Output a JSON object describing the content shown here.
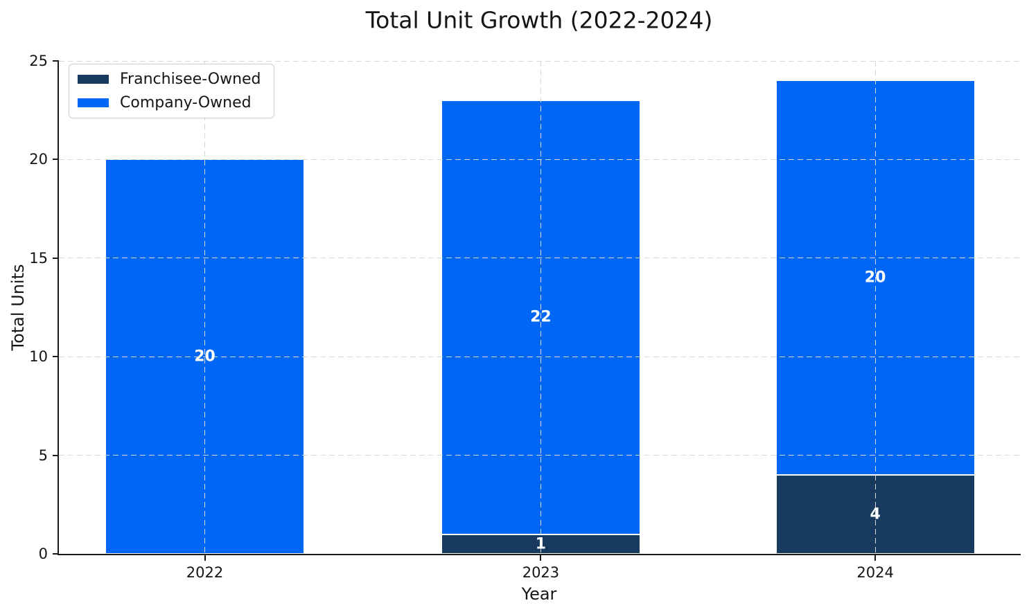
{
  "chart_data": {
    "type": "bar",
    "stacked": true,
    "title": "Total Unit Growth (2022-2024)",
    "xlabel": "Year",
    "ylabel": "Total Units",
    "categories": [
      "2022",
      "2023",
      "2024"
    ],
    "series": [
      {
        "name": "Franchisee-Owned",
        "color": "#173A5E",
        "values": [
          0,
          1,
          4
        ]
      },
      {
        "name": "Company-Owned",
        "color": "#0066F5",
        "values": [
          20,
          22,
          20
        ]
      }
    ],
    "totals": [
      20,
      23,
      24
    ],
    "bar_value_label_color": "#ffffff",
    "ylim": [
      0,
      25
    ],
    "yticks": [
      0,
      5,
      10,
      15,
      20,
      25
    ],
    "grid": {
      "visible": true,
      "style": "dashed",
      "axes": "both",
      "color": "#d8d8d8",
      "above_bars": true
    },
    "legend": {
      "position": "upper-left",
      "entries": [
        "Franchisee-Owned",
        "Company-Owned"
      ]
    },
    "axis_color": "#1a1a1a",
    "bar_edge_color": "#ffffff"
  }
}
